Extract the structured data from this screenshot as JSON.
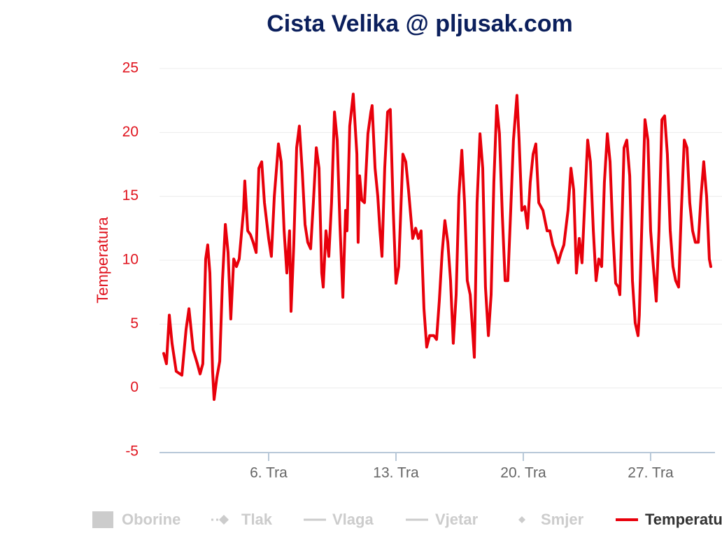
{
  "chart_data": {
    "type": "line",
    "title": "Cista Velika @ pljusak.com",
    "ylabel": "Temperatura",
    "ylim": [
      -5,
      25
    ],
    "yticks": [
      -5,
      0,
      5,
      10,
      15,
      20,
      25
    ],
    "xlim": [
      0,
      30.54
    ],
    "xticks": [
      {
        "value": 6,
        "label": "6. Tra"
      },
      {
        "value": 13,
        "label": "13. Tra"
      },
      {
        "value": 20,
        "label": "20. Tra"
      },
      {
        "value": 27,
        "label": "27. Tra"
      }
    ],
    "grid": true,
    "legend_inactive": [
      "Oborine",
      "Tlak",
      "Vlaga",
      "Vjetar",
      "Smjer"
    ],
    "series": [
      {
        "name": "Temperatura",
        "color": "#e8000b",
        "x": [
          0.23,
          0.38,
          0.54,
          0.69,
          0.92,
          1.23,
          1.46,
          1.62,
          1.85,
          2.08,
          2.23,
          2.38,
          2.54,
          2.65,
          2.77,
          2.92,
          3.0,
          3.15,
          3.31,
          3.46,
          3.62,
          3.77,
          3.92,
          4.08,
          4.23,
          4.38,
          4.62,
          4.69,
          4.85,
          5.0,
          5.15,
          5.31,
          5.46,
          5.62,
          5.77,
          6.0,
          6.15,
          6.31,
          6.54,
          6.69,
          6.85,
          7.0,
          7.15,
          7.23,
          7.38,
          7.54,
          7.69,
          7.85,
          8.0,
          8.15,
          8.31,
          8.46,
          8.62,
          8.77,
          8.92,
          9.0,
          9.15,
          9.31,
          9.46,
          9.62,
          9.77,
          9.92,
          10.08,
          10.23,
          10.31,
          10.46,
          10.65,
          10.85,
          10.92,
          11.0,
          11.12,
          11.27,
          11.46,
          11.62,
          11.69,
          11.85,
          12.0,
          12.12,
          12.23,
          12.38,
          12.54,
          12.69,
          12.85,
          13.0,
          13.15,
          13.38,
          13.54,
          13.69,
          13.92,
          14.08,
          14.23,
          14.38,
          14.54,
          14.69,
          14.85,
          15.08,
          15.23,
          15.38,
          15.54,
          15.69,
          15.85,
          16.0,
          16.15,
          16.31,
          16.46,
          16.62,
          16.77,
          16.92,
          17.08,
          17.23,
          17.31,
          17.46,
          17.62,
          17.77,
          17.92,
          18.08,
          18.23,
          18.38,
          18.54,
          18.69,
          18.85,
          19.0,
          19.15,
          19.31,
          19.46,
          19.65,
          19.77,
          19.92,
          20.08,
          20.23,
          20.38,
          20.54,
          20.69,
          20.85,
          21.08,
          21.31,
          21.46,
          21.62,
          21.77,
          21.92,
          22.08,
          22.23,
          22.46,
          22.62,
          22.77,
          22.92,
          23.08,
          23.23,
          23.38,
          23.54,
          23.69,
          23.85,
          24.0,
          24.15,
          24.31,
          24.46,
          24.62,
          24.77,
          24.92,
          25.08,
          25.23,
          25.31,
          25.38,
          25.54,
          25.69,
          25.85,
          26.0,
          26.15,
          26.31,
          26.38,
          26.54,
          26.69,
          26.85,
          27.0,
          27.15,
          27.31,
          27.46,
          27.62,
          27.77,
          27.92,
          28.08,
          28.23,
          28.38,
          28.54,
          28.69,
          28.85,
          29.0,
          29.15,
          29.31,
          29.46,
          29.62,
          29.77,
          29.92,
          30.08,
          30.23,
          30.31
        ],
        "values": [
          2.7,
          1.9,
          5.7,
          3.5,
          1.3,
          1.0,
          4.6,
          6.2,
          3.0,
          1.9,
          1.1,
          1.9,
          10.1,
          11.2,
          9.0,
          1.3,
          -0.9,
          0.8,
          2.1,
          8.4,
          12.8,
          10.6,
          5.4,
          10.1,
          9.5,
          10.1,
          13.9,
          16.2,
          12.3,
          12.0,
          11.4,
          10.6,
          17.2,
          17.7,
          14.5,
          11.7,
          10.3,
          15.0,
          19.1,
          17.7,
          12.3,
          9.0,
          12.3,
          6.0,
          11.2,
          18.8,
          20.5,
          16.9,
          12.8,
          11.4,
          10.9,
          14.5,
          18.8,
          17.2,
          9.0,
          7.9,
          12.3,
          10.3,
          14.5,
          21.6,
          19.4,
          12.8,
          7.1,
          13.9,
          12.3,
          20.5,
          23.0,
          18.3,
          11.4,
          16.6,
          14.7,
          14.5,
          19.9,
          21.6,
          22.1,
          17.2,
          15.0,
          12.3,
          10.3,
          17.2,
          21.6,
          21.8,
          13.9,
          8.2,
          9.5,
          18.3,
          17.7,
          15.5,
          11.7,
          12.5,
          11.7,
          12.3,
          6.2,
          3.2,
          4.1,
          4.1,
          3.8,
          6.8,
          10.6,
          13.1,
          11.4,
          8.4,
          3.5,
          7.3,
          15.0,
          18.6,
          14.5,
          8.4,
          7.3,
          4.1,
          2.4,
          14.5,
          19.9,
          17.2,
          7.9,
          4.1,
          7.3,
          16.1,
          22.1,
          19.9,
          13.4,
          8.4,
          8.4,
          13.9,
          19.4,
          22.9,
          19.4,
          13.9,
          14.2,
          12.5,
          16.1,
          18.3,
          19.1,
          14.5,
          13.9,
          12.3,
          12.3,
          11.2,
          10.6,
          9.8,
          10.6,
          11.2,
          13.9,
          17.2,
          15.5,
          9.0,
          11.7,
          9.8,
          14.5,
          19.4,
          17.7,
          12.3,
          8.4,
          10.1,
          9.5,
          16.1,
          19.9,
          17.7,
          12.3,
          8.2,
          7.9,
          7.3,
          10.6,
          18.8,
          19.4,
          16.6,
          8.4,
          5.1,
          4.1,
          5.7,
          13.9,
          21.0,
          19.4,
          12.3,
          9.5,
          6.8,
          12.3,
          21.0,
          21.3,
          18.3,
          12.3,
          9.5,
          8.4,
          7.9,
          13.9,
          19.4,
          18.8,
          14.5,
          12.3,
          11.4,
          11.4,
          15.0,
          17.7,
          15.0,
          10.1,
          9.5
        ]
      }
    ]
  }
}
